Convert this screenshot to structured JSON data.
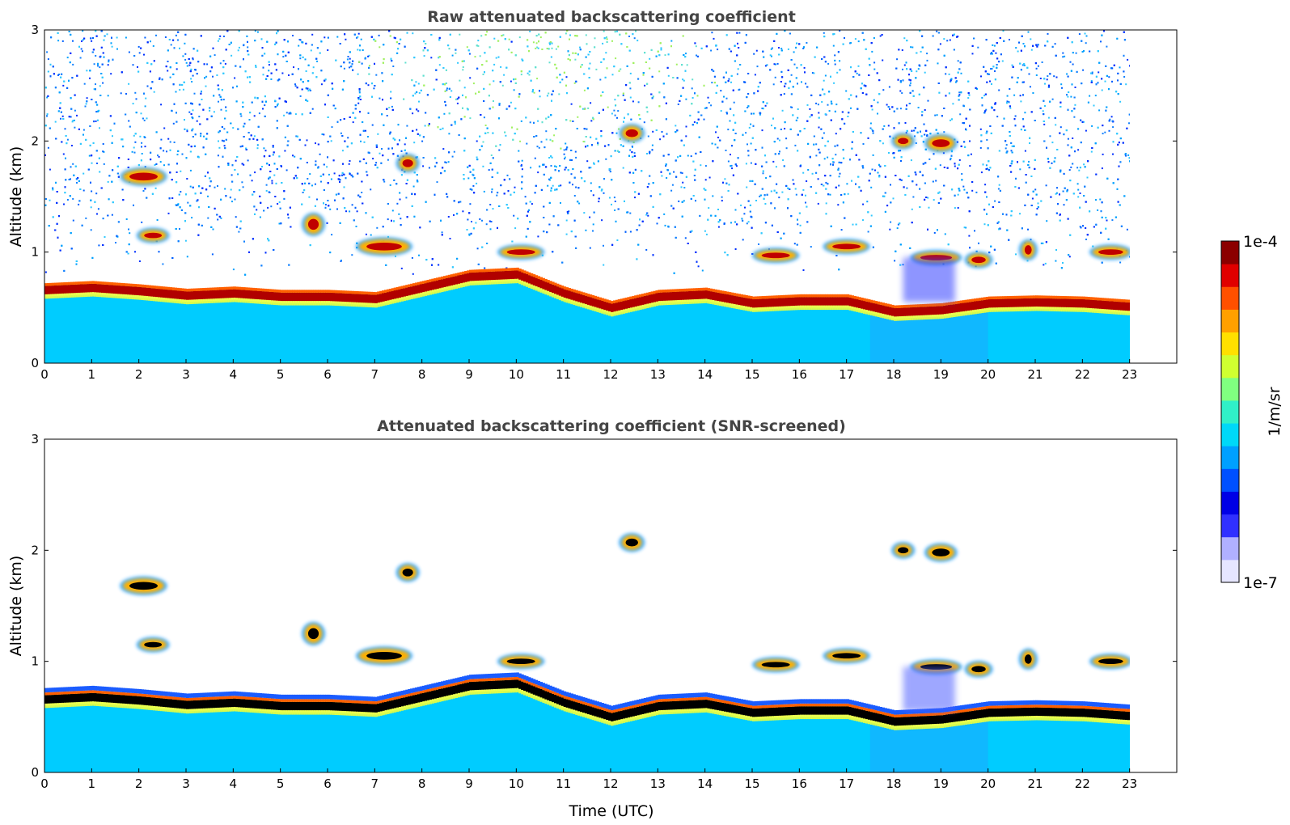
{
  "chart_data": [
    {
      "type": "heatmap",
      "id": "raw",
      "title": "Raw attenuated backscattering coefficient",
      "xlabel": "",
      "ylabel": "Altitude (km)",
      "xlim": [
        0,
        24
      ],
      "ylim": [
        0,
        3
      ],
      "x_ticks": [
        "0",
        "1",
        "2",
        "3",
        "4",
        "5",
        "6",
        "7",
        "8",
        "9",
        "10",
        "11",
        "12",
        "13",
        "14",
        "15",
        "16",
        "17",
        "18",
        "19",
        "20",
        "21",
        "22",
        "23"
      ],
      "y_ticks": [
        "0",
        "1",
        "2",
        "3"
      ],
      "data_extent_hours": [
        0,
        23
      ],
      "screened": false,
      "boundary_layer_top_km": [
        [
          0,
          0.68
        ],
        [
          1,
          0.7
        ],
        [
          2,
          0.67
        ],
        [
          3,
          0.63
        ],
        [
          4,
          0.65
        ],
        [
          5,
          0.62
        ],
        [
          6,
          0.62
        ],
        [
          7,
          0.6
        ],
        [
          8,
          0.7
        ],
        [
          9,
          0.8
        ],
        [
          10,
          0.82
        ],
        [
          11,
          0.65
        ],
        [
          12,
          0.52
        ],
        [
          13,
          0.62
        ],
        [
          14,
          0.64
        ],
        [
          15,
          0.56
        ],
        [
          16,
          0.58
        ],
        [
          17,
          0.58
        ],
        [
          18,
          0.48
        ],
        [
          19,
          0.5
        ],
        [
          20,
          0.56
        ],
        [
          21,
          0.57
        ],
        [
          22,
          0.56
        ],
        [
          23,
          0.53
        ]
      ],
      "cloud_features": [
        {
          "t": 2.1,
          "alt": 1.68,
          "w": 0.8,
          "h": 0.1
        },
        {
          "t": 2.3,
          "alt": 1.15,
          "w": 0.5,
          "h": 0.07
        },
        {
          "t": 5.7,
          "alt": 1.25,
          "w": 0.3,
          "h": 0.14
        },
        {
          "t": 7.7,
          "alt": 1.8,
          "w": 0.3,
          "h": 0.1
        },
        {
          "t": 7.2,
          "alt": 1.05,
          "w": 1.0,
          "h": 0.1
        },
        {
          "t": 10.1,
          "alt": 1.0,
          "w": 0.8,
          "h": 0.07
        },
        {
          "t": 12.45,
          "alt": 2.07,
          "w": 0.35,
          "h": 0.1
        },
        {
          "t": 17.0,
          "alt": 1.05,
          "w": 0.8,
          "h": 0.07
        },
        {
          "t": 18.2,
          "alt": 2.0,
          "w": 0.3,
          "h": 0.08
        },
        {
          "t": 19.0,
          "alt": 1.98,
          "w": 0.5,
          "h": 0.1
        },
        {
          "t": 18.9,
          "alt": 0.95,
          "w": 0.9,
          "h": 0.07
        },
        {
          "t": 19.8,
          "alt": 0.93,
          "w": 0.4,
          "h": 0.08
        },
        {
          "t": 20.85,
          "alt": 1.02,
          "w": 0.2,
          "h": 0.12
        },
        {
          "t": 22.6,
          "alt": 1.0,
          "w": 0.7,
          "h": 0.07
        },
        {
          "t": 15.5,
          "alt": 0.97,
          "w": 0.8,
          "h": 0.07
        }
      ]
    },
    {
      "type": "heatmap",
      "id": "screened",
      "title": "Attenuated backscattering coefficient (SNR-screened)",
      "xlabel": "Time (UTC)",
      "ylabel": "Altitude (km)",
      "xlim": [
        0,
        24
      ],
      "ylim": [
        0,
        3
      ],
      "x_ticks": [
        "0",
        "1",
        "2",
        "3",
        "4",
        "5",
        "6",
        "7",
        "8",
        "9",
        "10",
        "11",
        "12",
        "13",
        "14",
        "15",
        "16",
        "17",
        "18",
        "19",
        "20",
        "21",
        "22",
        "23"
      ],
      "y_ticks": [
        "0",
        "1",
        "2",
        "3"
      ],
      "data_extent_hours": [
        0,
        23
      ],
      "screened": true
    }
  ],
  "colorbar": {
    "label": "1/m/sr",
    "max_label": "1e-4",
    "min_label": "1e-7",
    "scale": "log",
    "range": [
      1e-07,
      0.0001
    ],
    "colors": [
      "#e6e6ff",
      "#b0b0ff",
      "#3030ff",
      "#0000e6",
      "#0050ff",
      "#00a0ff",
      "#00d8f8",
      "#30f0c8",
      "#80ff80",
      "#d0ff30",
      "#ffe000",
      "#ffa000",
      "#ff5000",
      "#e00000",
      "#8b0000"
    ]
  }
}
